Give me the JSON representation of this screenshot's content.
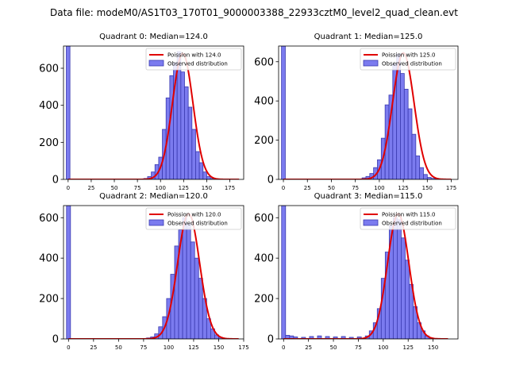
{
  "figure": {
    "title": "Data file: modeM0/AS1T03_170T01_9000003388_22933cztM0_level2_quad_clean.evt"
  },
  "colors": {
    "bar_fill": "#7b7bef",
    "bar_edge": "#3a3ab0",
    "curve": "#e00000",
    "axis": "#000000"
  },
  "chart_data": [
    {
      "type": "bar",
      "title": "Quadrant 0: Median=124.0",
      "legend": [
        "Poission with 124.0",
        "Observed distribution"
      ],
      "legend_position": "top-right",
      "xlim": [
        -5,
        190
      ],
      "ylim": [
        0,
        720
      ],
      "xticks": [
        0,
        25,
        50,
        75,
        100,
        125,
        150,
        175
      ],
      "yticks": [
        0,
        200,
        400,
        600
      ],
      "bin_width": 4,
      "bars": {
        "x": [
          0,
          84,
          88,
          92,
          96,
          100,
          104,
          108,
          112,
          116,
          120,
          124,
          128,
          132,
          136,
          140,
          144,
          148,
          152,
          156,
          160,
          164
        ],
        "values": [
          720,
          5,
          15,
          40,
          80,
          120,
          270,
          440,
          560,
          630,
          690,
          580,
          500,
          390,
          270,
          150,
          90,
          40,
          15,
          5,
          2,
          1
        ]
      },
      "curve": {
        "mean": 124.0,
        "peak": 680,
        "sigma": 11.1,
        "x_range": [
          0,
          185
        ]
      }
    },
    {
      "type": "bar",
      "title": "Quadrant 1: Median=125.0",
      "legend": [
        "Poission with 125.0",
        "Observed distribution"
      ],
      "legend_position": "top-right",
      "xlim": [
        -5,
        182
      ],
      "ylim": [
        0,
        680
      ],
      "xticks": [
        0,
        25,
        50,
        75,
        100,
        125,
        150,
        175
      ],
      "yticks": [
        0,
        200,
        400,
        600
      ],
      "bin_width": 4,
      "bars": {
        "x": [
          0,
          84,
          88,
          92,
          96,
          100,
          104,
          108,
          112,
          116,
          120,
          124,
          128,
          132,
          136,
          140,
          144,
          148,
          152,
          156,
          160
        ],
        "values": [
          680,
          8,
          15,
          30,
          60,
          100,
          210,
          380,
          430,
          590,
          640,
          540,
          460,
          360,
          230,
          120,
          60,
          25,
          10,
          5,
          2
        ]
      },
      "curve": {
        "mean": 125.0,
        "peak": 645,
        "sigma": 11.2,
        "x_range": [
          0,
          175
        ]
      }
    },
    {
      "type": "bar",
      "title": "Quadrant 2: Median=120.0",
      "legend": [
        "Poission with 120.0",
        "Observed distribution"
      ],
      "legend_position": "top-right",
      "xlim": [
        -5,
        175
      ],
      "ylim": [
        0,
        660
      ],
      "xticks": [
        0,
        25,
        50,
        75,
        100,
        125,
        150,
        175
      ],
      "yticks": [
        0,
        200,
        400,
        600
      ],
      "bin_width": 4,
      "bars": {
        "x": [
          0,
          80,
          84,
          88,
          92,
          96,
          100,
          104,
          108,
          112,
          116,
          120,
          124,
          128,
          132,
          136,
          140,
          144,
          148,
          152,
          156
        ],
        "values": [
          660,
          5,
          10,
          25,
          60,
          110,
          200,
          320,
          460,
          540,
          600,
          570,
          480,
          400,
          300,
          200,
          100,
          50,
          20,
          8,
          3
        ]
      },
      "curve": {
        "mean": 120.0,
        "peak": 620,
        "sigma": 11.0,
        "x_range": [
          0,
          170
        ]
      }
    },
    {
      "type": "bar",
      "title": "Quadrant 3: Median=115.0",
      "legend": [
        "Poission with 115.0",
        "Observed distribution"
      ],
      "legend_position": "top-right",
      "xlim": [
        -5,
        175
      ],
      "ylim": [
        0,
        660
      ],
      "xticks": [
        0,
        25,
        50,
        75,
        100,
        125,
        150
      ],
      "yticks": [
        0,
        200,
        400,
        600
      ],
      "bin_width": 4,
      "bars": {
        "x": [
          0,
          4,
          8,
          12,
          20,
          28,
          36,
          44,
          52,
          60,
          68,
          76,
          84,
          88,
          92,
          96,
          100,
          104,
          108,
          112,
          116,
          120,
          124,
          128,
          132,
          136,
          140,
          144,
          148
        ],
        "values": [
          660,
          18,
          15,
          10,
          8,
          12,
          15,
          12,
          10,
          12,
          8,
          10,
          15,
          40,
          80,
          150,
          300,
          430,
          560,
          600,
          590,
          500,
          390,
          270,
          160,
          80,
          40,
          15,
          5
        ]
      },
      "curve": {
        "mean": 115.0,
        "peak": 620,
        "sigma": 10.7,
        "x_range": [
          0,
          165
        ]
      }
    }
  ]
}
